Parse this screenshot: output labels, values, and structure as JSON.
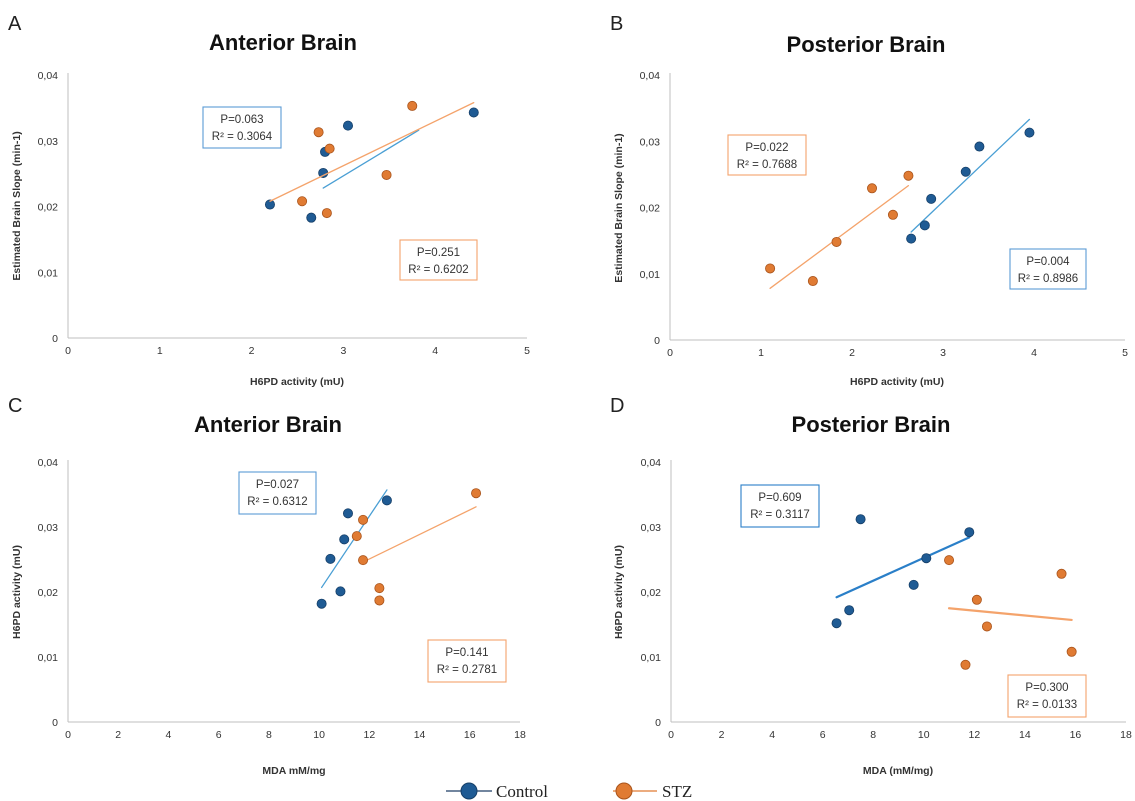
{
  "legend": {
    "items": [
      {
        "label": "Control",
        "color": "#1f5b94"
      },
      {
        "label": "STZ",
        "color": "#e07b33"
      }
    ]
  },
  "colors": {
    "control_marker": "#1f5b94",
    "stz_marker": "#e07b33",
    "control_line_ab": "#4a9fd4",
    "control_line_d": "#2a7fc8",
    "stz_line": "#f4a36b"
  },
  "chart_data": [
    {
      "panel": "A",
      "type": "scatter",
      "title": "Anterior Brain",
      "xlabel": "H6PD activity (mU)",
      "ylabel": "Estimated Brain Slope (min-1)",
      "xlim": [
        0,
        5
      ],
      "ylim": [
        0,
        0.04
      ],
      "xticks": [
        "0",
        "1",
        "2",
        "3",
        "4",
        "5"
      ],
      "yticks": [
        "0",
        "0,01",
        "0,02",
        "0,03",
        "0,04"
      ],
      "grid": false,
      "series": [
        {
          "name": "Control",
          "points": [
            [
              2.2,
              0.0203
            ],
            [
              2.65,
              0.0183
            ],
            [
              2.78,
              0.0251
            ],
            [
              2.8,
              0.0283
            ],
            [
              3.05,
              0.0323
            ],
            [
              4.42,
              0.0343
            ]
          ],
          "trendline": [
            [
              2.78,
              0.0228
            ],
            [
              3.82,
              0.0316
            ]
          ],
          "annotation": [
            "P=0.063",
            "R² = 0.3064"
          ]
        },
        {
          "name": "STZ",
          "points": [
            [
              2.55,
              0.0208
            ],
            [
              2.73,
              0.0313
            ],
            [
              2.82,
              0.019
            ],
            [
              2.85,
              0.0288
            ],
            [
              3.47,
              0.0248
            ],
            [
              3.75,
              0.0353
            ]
          ],
          "trendline": [
            [
              2.2,
              0.0208
            ],
            [
              4.42,
              0.0358
            ]
          ],
          "annotation": [
            "P=0.251",
            "R² = 0.6202"
          ]
        }
      ]
    },
    {
      "panel": "B",
      "type": "scatter",
      "title": "Posterior Brain",
      "xlabel": "H6PD activity (mU)",
      "ylabel": "Estimated Brain Slope (min-1)",
      "xlim": [
        0,
        5
      ],
      "ylim": [
        0,
        0.04
      ],
      "xticks": [
        "0",
        "1",
        "2",
        "3",
        "4",
        "5"
      ],
      "yticks": [
        "0",
        "0,01",
        "0,02",
        "0,03",
        "0,04"
      ],
      "grid": false,
      "series": [
        {
          "name": "Control",
          "points": [
            [
              2.65,
              0.0153
            ],
            [
              2.8,
              0.0173
            ],
            [
              2.87,
              0.0213
            ],
            [
              3.25,
              0.0254
            ],
            [
              3.4,
              0.0292
            ],
            [
              3.95,
              0.0313
            ]
          ],
          "trendline": [
            [
              2.65,
              0.0163
            ],
            [
              3.95,
              0.0333
            ]
          ],
          "annotation": [
            "P=0.004",
            "R² = 0.8986"
          ]
        },
        {
          "name": "STZ",
          "points": [
            [
              1.1,
              0.0108
            ],
            [
              1.57,
              0.0089
            ],
            [
              1.83,
              0.0148
            ],
            [
              2.22,
              0.0229
            ],
            [
              2.45,
              0.0189
            ],
            [
              2.62,
              0.0248
            ]
          ],
          "trendline": [
            [
              1.1,
              0.0078
            ],
            [
              2.62,
              0.0233
            ]
          ],
          "annotation": [
            "P=0.022",
            "R² = 0.7688"
          ]
        }
      ]
    },
    {
      "panel": "C",
      "type": "scatter",
      "title": "Anterior Brain",
      "xlabel": "MDA mM/mg",
      "ylabel": "H6PD activity (mU)",
      "xlim": [
        0,
        18
      ],
      "ylim": [
        0,
        0.04
      ],
      "xticks": [
        "0",
        "2",
        "4",
        "6",
        "8",
        "10",
        "12",
        "14",
        "16",
        "18"
      ],
      "yticks": [
        "0",
        "0,01",
        "0,02",
        "0,03",
        "0,04"
      ],
      "grid": false,
      "series": [
        {
          "name": "Control",
          "points": [
            [
              10.1,
              0.0182
            ],
            [
              10.45,
              0.0251
            ],
            [
              10.85,
              0.0201
            ],
            [
              11.0,
              0.0281
            ],
            [
              11.15,
              0.0321
            ],
            [
              12.7,
              0.0341
            ]
          ],
          "trendline": [
            [
              10.1,
              0.0207
            ],
            [
              12.7,
              0.0357
            ]
          ],
          "annotation": [
            "P=0.027",
            "R² = 0.6312"
          ]
        },
        {
          "name": "STZ",
          "points": [
            [
              11.5,
              0.0286
            ],
            [
              11.75,
              0.0311
            ],
            [
              11.75,
              0.0249
            ],
            [
              12.4,
              0.0206
            ],
            [
              12.4,
              0.0187
            ],
            [
              16.25,
              0.0352
            ]
          ],
          "trendline": [
            [
              11.75,
              0.0246
            ],
            [
              16.25,
              0.0331
            ]
          ],
          "annotation": [
            "P=0.141",
            "R² = 0.2781"
          ]
        }
      ]
    },
    {
      "panel": "D",
      "type": "scatter",
      "title": "Posterior Brain",
      "xlabel": "MDA (mM/mg)",
      "ylabel": "H6PD activity (mU)",
      "xlim": [
        0,
        18
      ],
      "ylim": [
        0,
        0.04
      ],
      "xticks": [
        "0",
        "2",
        "4",
        "6",
        "8",
        "10",
        "12",
        "14",
        "16",
        "18"
      ],
      "yticks": [
        "0",
        "0,01",
        "0,02",
        "0,03",
        "0,04"
      ],
      "grid": false,
      "series": [
        {
          "name": "Control",
          "points": [
            [
              6.55,
              0.0152
            ],
            [
              7.05,
              0.0172
            ],
            [
              7.5,
              0.0312
            ],
            [
              9.6,
              0.0211
            ],
            [
              10.1,
              0.0252
            ],
            [
              11.8,
              0.0292
            ]
          ],
          "trendline": [
            [
              6.55,
              0.0192
            ],
            [
              11.8,
              0.0284
            ]
          ],
          "annotation": [
            "P=0.609",
            "R² = 0.3117"
          ]
        },
        {
          "name": "STZ",
          "points": [
            [
              11.0,
              0.0249
            ],
            [
              11.65,
              0.0088
            ],
            [
              12.1,
              0.0188
            ],
            [
              12.5,
              0.0147
            ],
            [
              15.45,
              0.0228
            ],
            [
              15.85,
              0.0108
            ]
          ],
          "trendline": [
            [
              11.0,
              0.0175
            ],
            [
              15.85,
              0.0157
            ]
          ],
          "annotation": [
            "P=0.300",
            "R² = 0.0133"
          ]
        }
      ]
    }
  ]
}
